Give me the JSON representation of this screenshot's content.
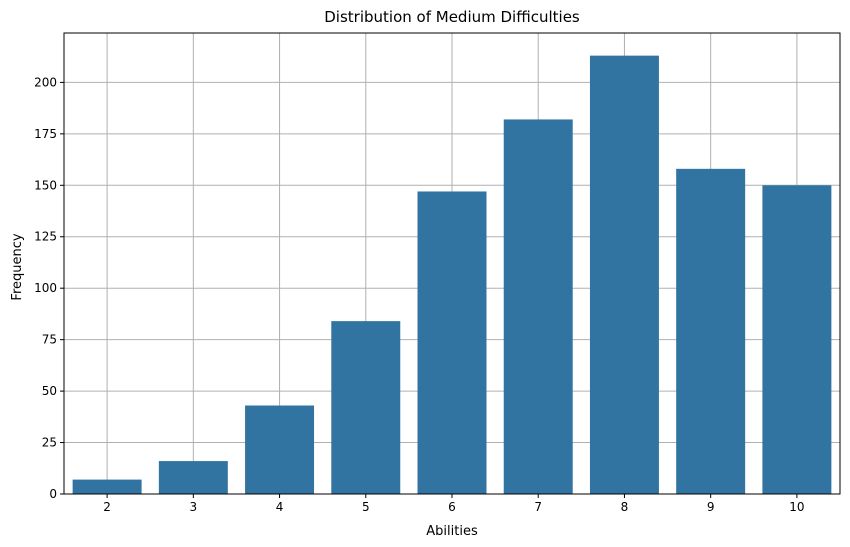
{
  "chart_data": {
    "type": "bar",
    "title": "Distribution of Medium Difficulties",
    "xlabel": "Abilities",
    "ylabel": "Frequency",
    "categories": [
      "2",
      "3",
      "4",
      "5",
      "6",
      "7",
      "8",
      "9",
      "10"
    ],
    "values": [
      7,
      16,
      43,
      84,
      147,
      182,
      213,
      158,
      150
    ],
    "ylim": [
      0,
      224
    ],
    "yticks": [
      0,
      25,
      50,
      75,
      100,
      125,
      150,
      175,
      200
    ],
    "grid": true,
    "bar_color": "#3274a1"
  }
}
